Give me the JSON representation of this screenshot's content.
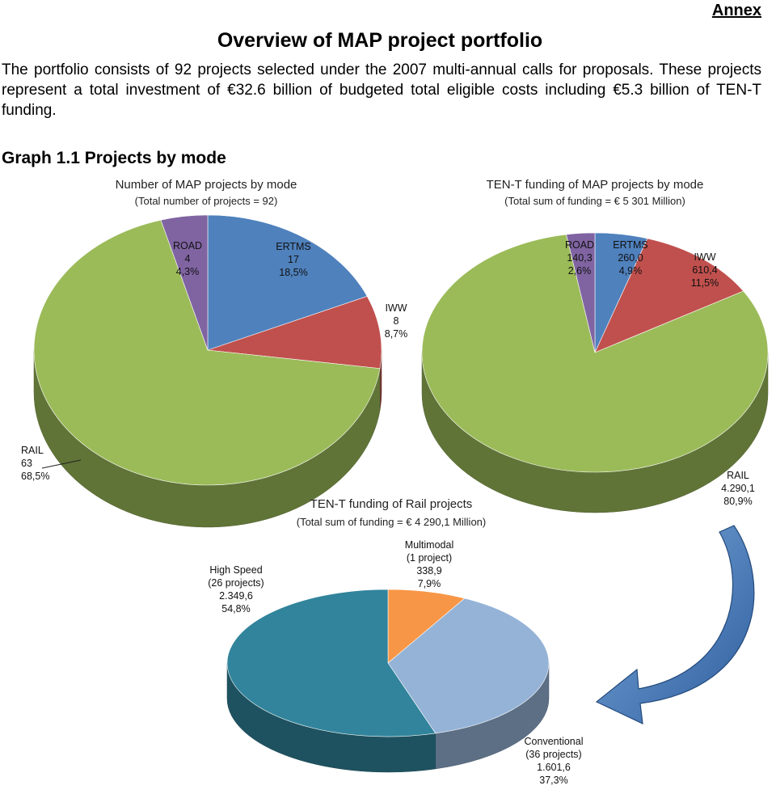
{
  "header": {
    "annex": "Annex",
    "title": "Overview of MAP project portfolio",
    "intro": "The portfolio consists of 92 projects selected under the 2007 multi-annual calls for proposals. These projects represent a total investment of €32.6 billion of budgeted total eligible costs including €5.3 billion of TEN-T funding.",
    "graph_heading": "Graph 1.1  Projects by mode"
  },
  "chart_data": [
    {
      "type": "pie",
      "title": "Number of MAP projects by mode",
      "subtitle": "(Total number of projects = 92)",
      "slices": [
        {
          "name": "ERTMS",
          "value_text": "17",
          "pct_text": "18,5%",
          "value": 17,
          "color": "#4F81BD"
        },
        {
          "name": "IWW",
          "value_text": "8",
          "pct_text": "8,7%",
          "value": 8,
          "color": "#C0504D"
        },
        {
          "name": "RAIL",
          "value_text": "63",
          "pct_text": "68,5%",
          "value": 63,
          "color": "#9BBB59"
        },
        {
          "name": "ROAD",
          "value_text": "4",
          "pct_text": "4,3%",
          "value": 4,
          "color": "#8064A2"
        }
      ]
    },
    {
      "type": "pie",
      "title": "TEN-T funding of MAP projects by mode",
      "subtitle": "(Total sum of funding = € 5 301 Million)",
      "slices": [
        {
          "name": "ERTMS",
          "value_text": "260,0",
          "pct_text": "4,9%",
          "value": 260.0,
          "color": "#4F81BD"
        },
        {
          "name": "IWW",
          "value_text": "610,4",
          "pct_text": "11,5%",
          "value": 610.4,
          "color": "#C0504D"
        },
        {
          "name": "RAIL",
          "value_text": "4.290,1",
          "pct_text": "80,9%",
          "value": 4290.1,
          "color": "#9BBB59"
        },
        {
          "name": "ROAD",
          "value_text": "140,3",
          "pct_text": "2,6%",
          "value": 140.3,
          "color": "#8064A2"
        }
      ]
    },
    {
      "type": "pie",
      "title": "TEN-T funding  of Rail projects",
      "subtitle": "(Total sum of funding = € 4 290,1 Million)",
      "slices": [
        {
          "name": "Multimodal",
          "detail": "(1 project)",
          "value_text": "338,9",
          "pct_text": "7,9%",
          "value": 338.9,
          "color": "#F79646"
        },
        {
          "name": "Conventional",
          "detail": "(36 projects)",
          "value_text": "1.601,6",
          "pct_text": "37,3%",
          "value": 1601.6,
          "color": "#95B3D7"
        },
        {
          "name": "High Speed",
          "detail": "(26 projects)",
          "value_text": "2.349,6",
          "pct_text": "54,8%",
          "value": 2349.6,
          "color": "#31849B"
        }
      ]
    }
  ]
}
